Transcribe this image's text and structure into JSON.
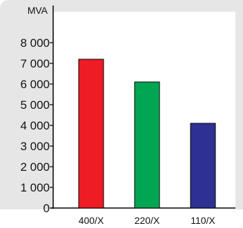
{
  "chart_data": {
    "type": "bar",
    "title": "",
    "xlabel": "",
    "ylabel": "MVA",
    "categories": [
      "400/X",
      "220/X",
      "110/X"
    ],
    "values": [
      7200,
      6100,
      4100
    ],
    "ylim": [
      0,
      8000
    ],
    "yticks": [
      0,
      1000,
      2000,
      3000,
      4000,
      5000,
      6000,
      7000,
      8000
    ],
    "ytick_labels": [
      "0",
      "1 000",
      "2 000",
      "3 000",
      "4 000",
      "5 000",
      "6 000",
      "7 000",
      "8 000"
    ],
    "colors": [
      "#ee1c25",
      "#00a651",
      "#2e3192"
    ],
    "grid": false,
    "legend": "none"
  }
}
